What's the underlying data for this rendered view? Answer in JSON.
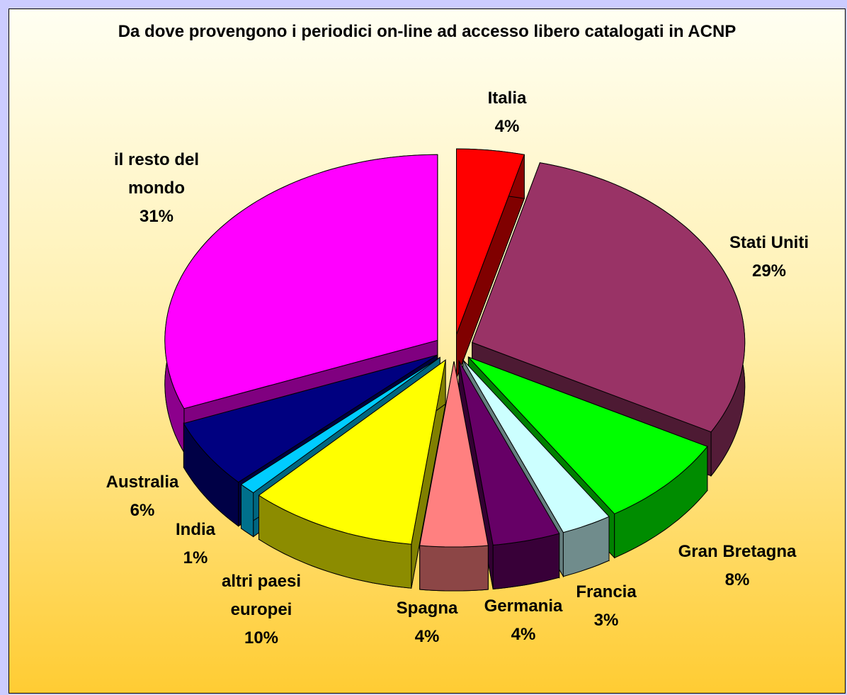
{
  "chart_data": {
    "type": "pie",
    "title": "Da dove provengono i  periodici on-line ad accesso libero catalogati in ACNP",
    "categories": [
      "Italia",
      "Stati Uniti",
      "Gran Bretagna",
      "Francia",
      "Germania",
      "Spagna",
      "altri paesi europei",
      "India",
      "Australia",
      "il resto del mondo"
    ],
    "values": [
      4,
      29,
      8,
      3,
      4,
      4,
      10,
      1,
      6,
      31
    ],
    "value_labels": [
      "4%",
      "29%",
      "8%",
      "3%",
      "4%",
      "4%",
      "10%",
      "1%",
      "6%",
      "31%"
    ],
    "colors": [
      "#ff0000",
      "#993366",
      "#00ff00",
      "#ccffff",
      "#660066",
      "#ff8080",
      "#ffff00",
      "#00ccff",
      "#000080",
      "#ff00ff"
    ]
  }
}
